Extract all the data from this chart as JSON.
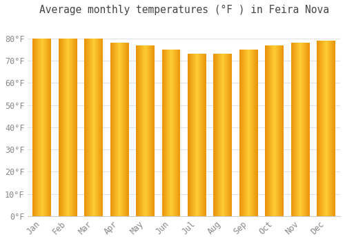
{
  "title": "Average monthly temperatures (°F ) in Feira Nova",
  "months": [
    "Jan",
    "Feb",
    "Mar",
    "Apr",
    "May",
    "Jun",
    "Jul",
    "Aug",
    "Sep",
    "Oct",
    "Nov",
    "Dec"
  ],
  "values": [
    80,
    80,
    80,
    78,
    77,
    75,
    73,
    73,
    75,
    77,
    78,
    79
  ],
  "ylim": [
    0,
    88
  ],
  "yticks": [
    0,
    10,
    20,
    30,
    40,
    50,
    60,
    70,
    80
  ],
  "ytick_labels": [
    "0°F",
    "10°F",
    "20°F",
    "30°F",
    "40°F",
    "50°F",
    "60°F",
    "70°F",
    "80°F"
  ],
  "bar_color_center": "#FFCC33",
  "bar_color_edge": "#E8920A",
  "plot_bg_color": "#FFFFFF",
  "outer_bg_color": "#FFFFFF",
  "grid_color": "#E0E0E8",
  "text_color": "#888888",
  "title_color": "#444444",
  "title_fontsize": 10.5,
  "tick_fontsize": 8.5,
  "bar_width": 0.72
}
